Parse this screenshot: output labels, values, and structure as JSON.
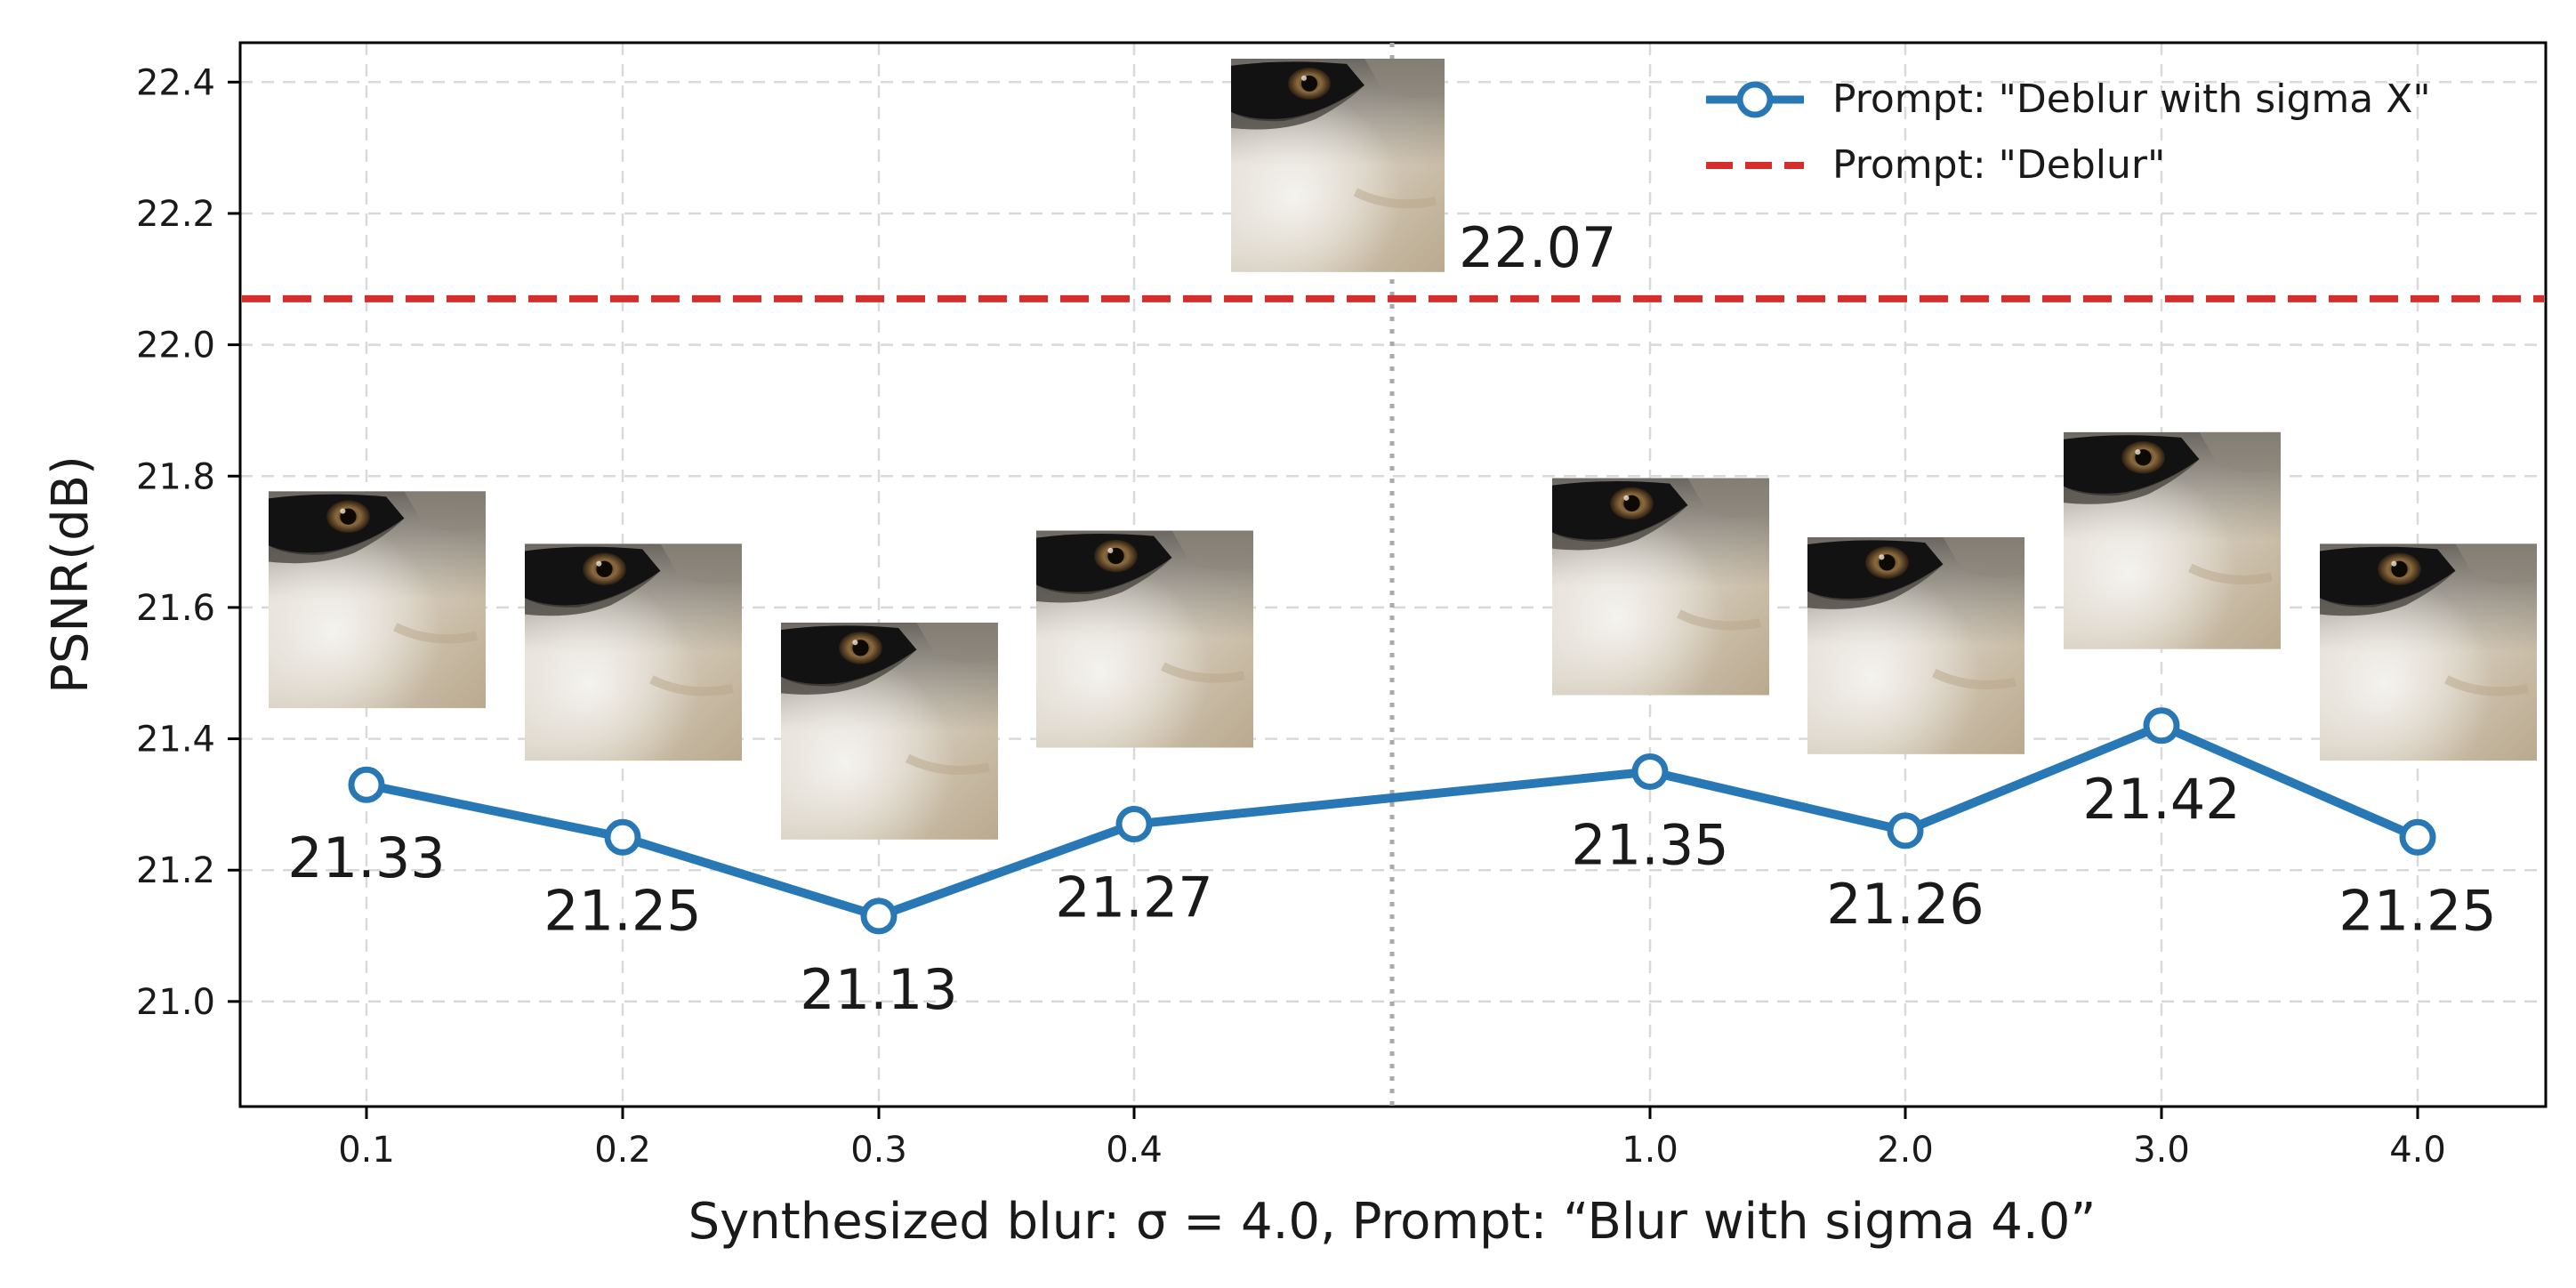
{
  "chart_data": {
    "type": "line",
    "xlabel": "Synthesized blur: σ = 4.0, Prompt: “Blur with sigma 4.0”",
    "ylabel": "PSNR(dB)",
    "categories": [
      "0.1",
      "0.2",
      "0.3",
      "0.4",
      "1.0",
      "2.0",
      "3.0",
      "4.0"
    ],
    "ylim": [
      20.84,
      22.46
    ],
    "yticks": [
      "21.0",
      "21.2",
      "21.4",
      "21.6",
      "21.8",
      "22.0",
      "22.2",
      "22.4"
    ],
    "grid": true,
    "legend_position": "top-right",
    "series": [
      {
        "name": "Prompt: \"Deblur with sigma X\"",
        "values": [
          21.33,
          21.25,
          21.13,
          21.27,
          21.35,
          21.26,
          21.42,
          21.25
        ],
        "labels": [
          "21.33",
          "21.25",
          "21.13",
          "21.27",
          "21.35",
          "21.26",
          "21.42",
          "21.25"
        ],
        "color": "#2878b5",
        "style": "solid-line-hollow-circles"
      },
      {
        "name": "Prompt: \"Deblur\"",
        "value": 22.07,
        "label": "22.07",
        "color": "#d62d2d",
        "style": "dashed-horizontal"
      }
    ],
    "separator": "dotted vertical line between 0.4 and 1.0",
    "thumbnails": "fur-closeup image above each point and above the baseline label"
  }
}
